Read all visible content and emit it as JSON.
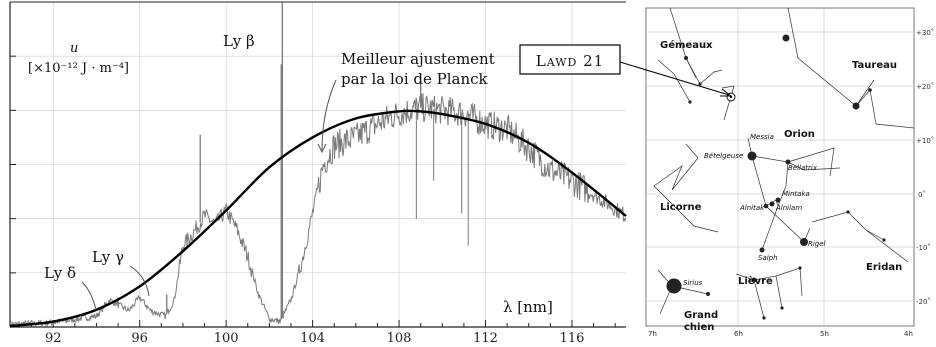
{
  "chart_data": {
    "type": "line",
    "xlabel": "λ [nm]",
    "ylabel": "u",
    "ylabel_unit": "[×10⁻¹² J · m⁻⁴]",
    "xlim": [
      90,
      118.5
    ],
    "ylim": [
      0,
      6
    ],
    "x_ticks": [
      92,
      96,
      100,
      104,
      108,
      112,
      116
    ],
    "grid": true,
    "series": [
      {
        "name": "Spectrum",
        "x": [
          90,
          92,
          94,
          94.6,
          95.5,
          96,
          96.5,
          97.2,
          97.6,
          98,
          98.5,
          99,
          99.5,
          100,
          100.5,
          101,
          101.5,
          102,
          102.5,
          103,
          103.5,
          104,
          104.5,
          105,
          106,
          107,
          108,
          109,
          110,
          111,
          112,
          113,
          114,
          115,
          116,
          117,
          118.5
        ],
        "y": [
          0.05,
          0.08,
          0.2,
          0.5,
          0.3,
          0.55,
          0.3,
          0.2,
          0.5,
          1.5,
          1.75,
          2.05,
          1.9,
          2.15,
          1.8,
          1.3,
          0.6,
          0.15,
          0.1,
          0.5,
          1.2,
          2.1,
          3.0,
          3.35,
          3.5,
          3.75,
          3.95,
          4.05,
          4.0,
          3.95,
          3.75,
          3.65,
          3.3,
          2.9,
          2.7,
          2.45,
          2.05
        ]
      },
      {
        "name": "Meilleur ajustement par la loi de Planck",
        "x": [
          90,
          92,
          94,
          96,
          98,
          100,
          102,
          104,
          106,
          108,
          109,
          110,
          112,
          114,
          116,
          118.5
        ],
        "y": [
          0.02,
          0.1,
          0.32,
          0.75,
          1.4,
          2.15,
          2.95,
          3.5,
          3.85,
          3.98,
          3.98,
          3.93,
          3.75,
          3.4,
          2.85,
          2.05
        ]
      }
    ],
    "emission_lines": [
      {
        "x": 95.0,
        "y": 0.55
      },
      {
        "x": 97.25,
        "y": 0.6
      },
      {
        "x": 98.8,
        "y": 3.55
      },
      {
        "x": 102.55,
        "y": 4.85
      },
      {
        "x": 102.6,
        "y": 6.0
      },
      {
        "x": 109.0,
        "y": 4.55
      }
    ],
    "absorption_lines": [
      {
        "x": 111.2,
        "y": 1.5
      },
      {
        "x": 110.9,
        "y": 2.1
      },
      {
        "x": 109.6,
        "y": 2.7
      },
      {
        "x": 108.8,
        "y": 2.0
      }
    ],
    "annotations": {
      "ly_beta": "Ly β",
      "ly_gamma": "Ly γ",
      "ly_delta": "Ly δ",
      "fit_line1": "Meilleur ajustement",
      "fit_line2": "par la loi de Planck"
    }
  },
  "star_map": {
    "target_label": "Lawd 21",
    "constellations": {
      "gemeaux": "Gémeaux",
      "taureau": "Taureau",
      "orion": "Orion",
      "licorne": "Licorne",
      "eridan": "Eridan",
      "lievre": "Lièvre",
      "grand_chien_1": "Grand",
      "grand_chien_2": "chien"
    },
    "stars": {
      "messia": "Messia",
      "betelgeuse": "Bételgeuse",
      "bellatrix": "Bellatrix",
      "mintaka": "Mintaka",
      "alnitak": "Alnitak",
      "alnilam": "Alnilam",
      "rigel": "Rigel",
      "saiph": "Saiph",
      "sirius": "Sirius"
    },
    "dec_ticks": [
      "+30˚",
      "+20˚",
      "+10˚",
      "0˚",
      "-10˚",
      "-20˚"
    ],
    "ra_ticks": [
      "7h",
      "6h",
      "5h",
      "4h"
    ]
  }
}
